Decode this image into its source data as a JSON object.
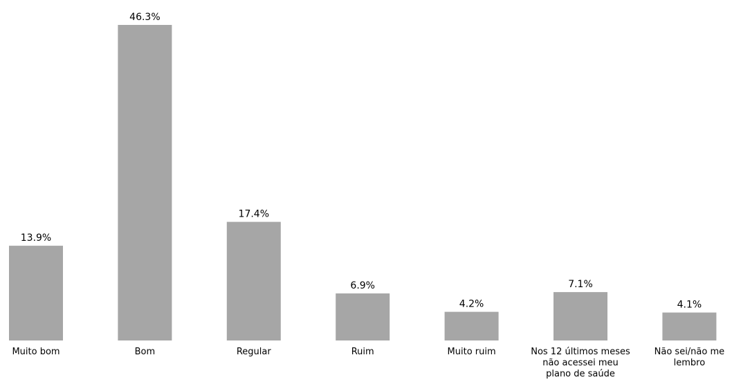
{
  "chart_data": {
    "type": "bar",
    "categories": [
      "Muito bom",
      "Bom",
      "Regular",
      "Ruim",
      "Muito ruim",
      "Nos 12 últimos meses não acessei meu plano de saúde",
      "Não sei/não me lembro"
    ],
    "category_lines": [
      [
        "Muito bom"
      ],
      [
        "Bom"
      ],
      [
        "Regular"
      ],
      [
        "Ruim"
      ],
      [
        "Muito ruim"
      ],
      [
        "Nos 12 últimos meses",
        "não acessei meu",
        "plano de saúde"
      ],
      [
        "Não sei/não me",
        "lembro"
      ]
    ],
    "values": [
      13.9,
      46.3,
      17.4,
      6.9,
      4.2,
      7.1,
      4.1
    ],
    "value_labels": [
      "13.9%",
      "46.3%",
      "17.4%",
      "6.9%",
      "4.2%",
      "7.1%",
      "4.1%"
    ],
    "ylim": [
      0,
      46.3
    ],
    "grid": false,
    "bar_color": "#a6a6a6"
  }
}
